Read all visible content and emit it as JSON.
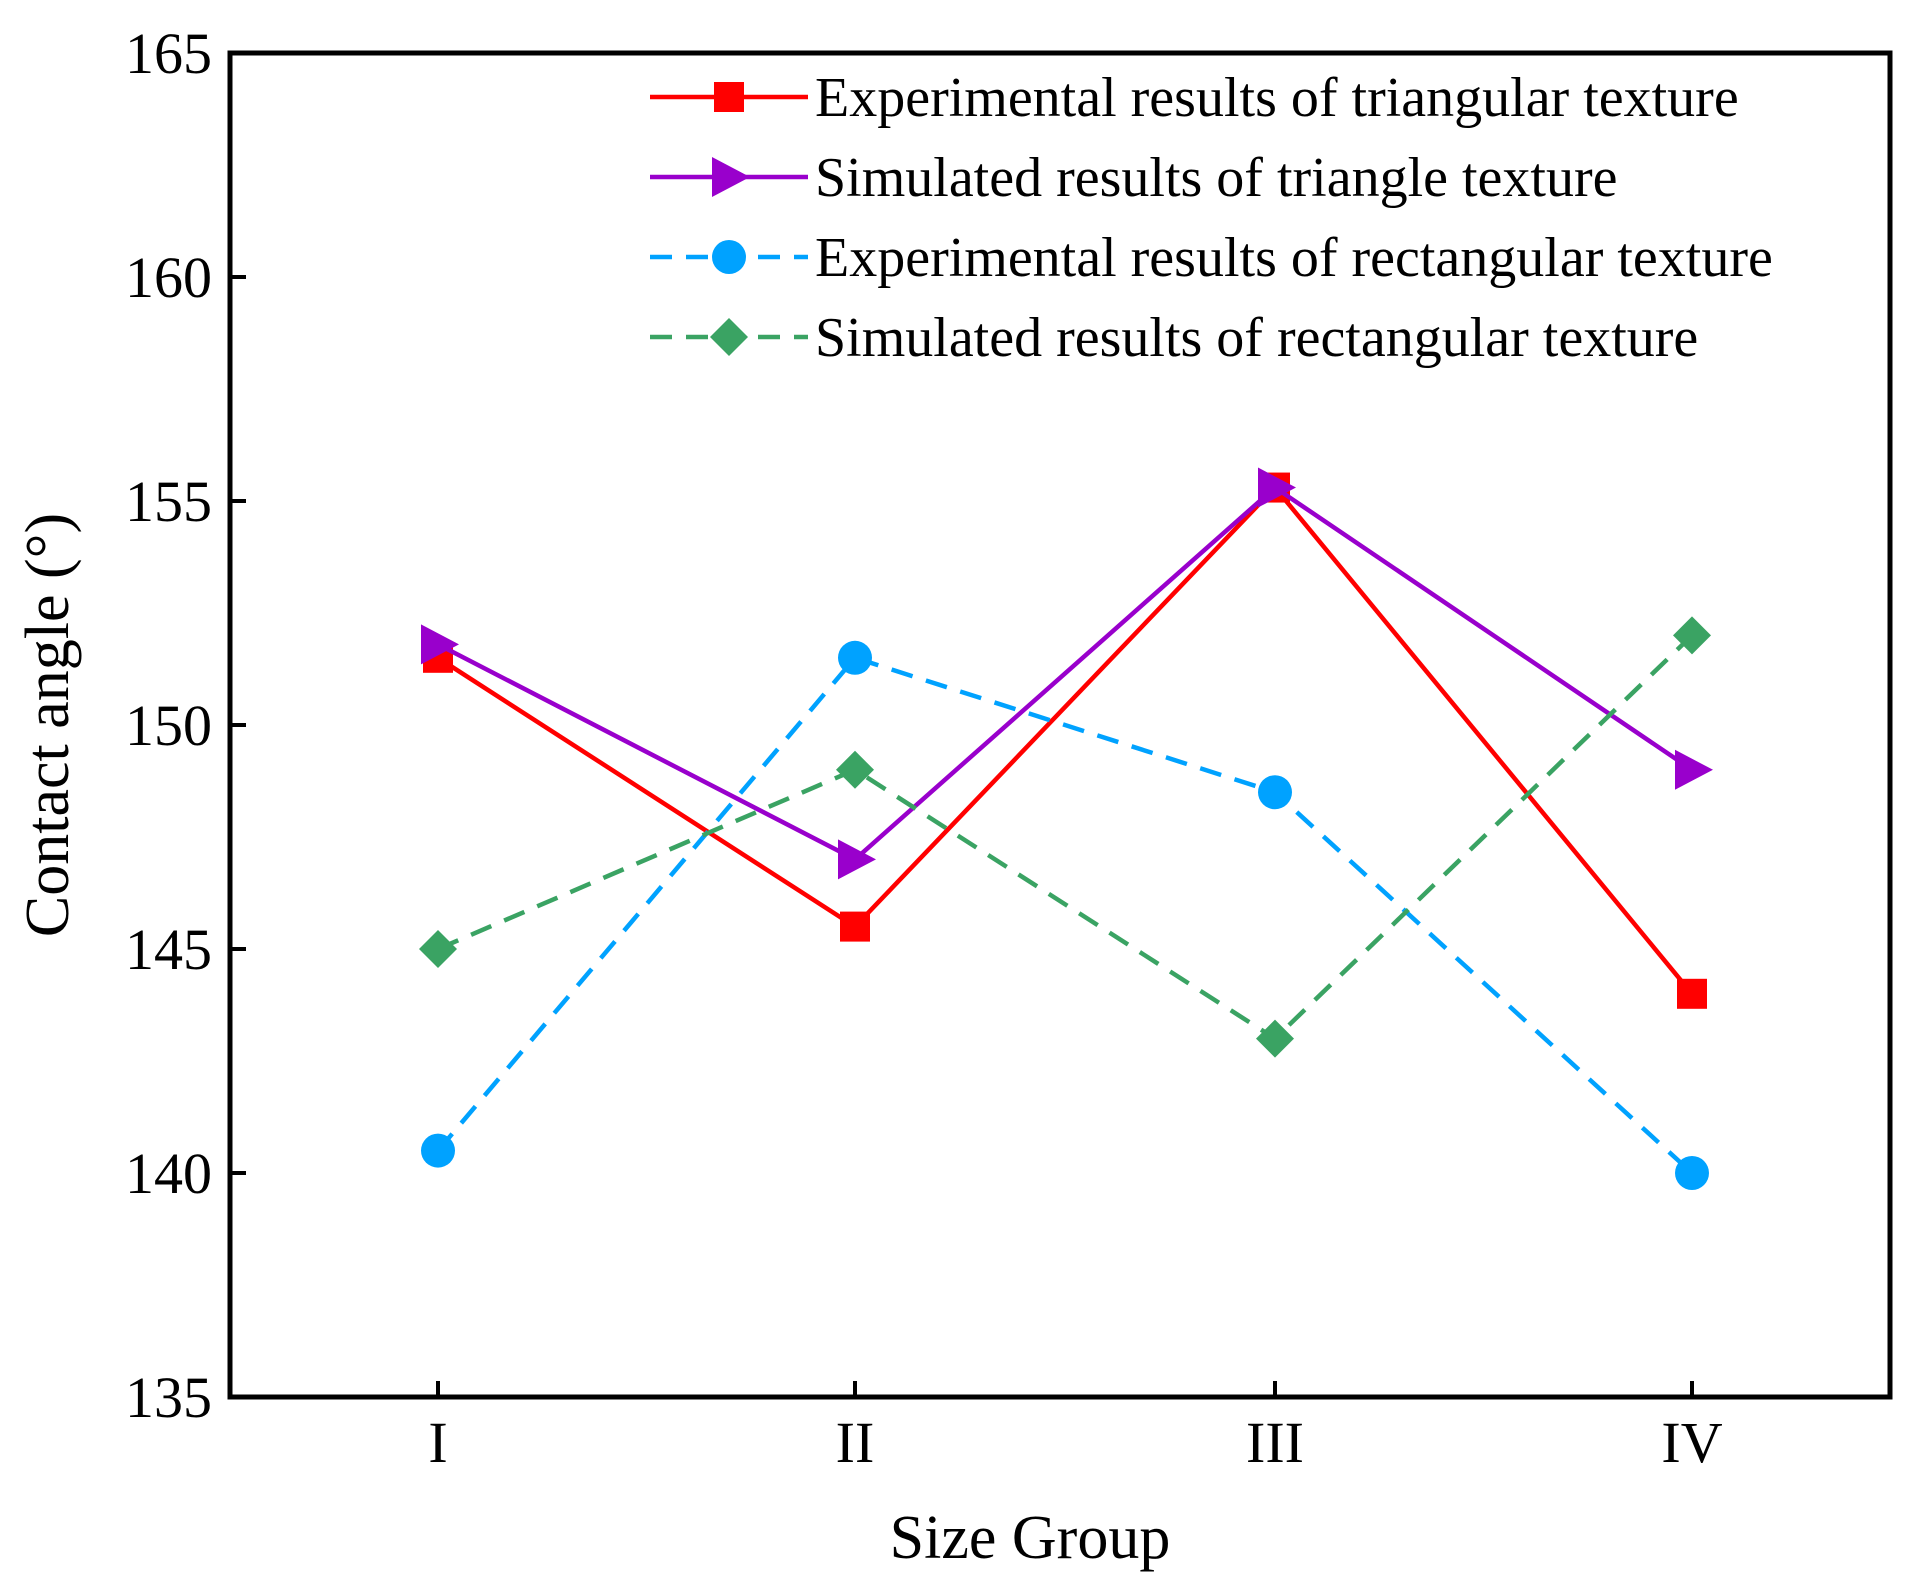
{
  "chart_data": {
    "type": "line",
    "title": "",
    "xlabel": "Size Group",
    "ylabel": "Contact angle (°)",
    "categories": [
      "I",
      "II",
      "III",
      "IV"
    ],
    "ylim": [
      135,
      165
    ],
    "yticks": [
      135,
      140,
      145,
      150,
      155,
      160,
      165
    ],
    "grid": false,
    "legend_position": "top-right",
    "series": [
      {
        "name": "Experimental results of triangular texture",
        "color": "#ff0000",
        "marker": "square",
        "linestyle": "solid",
        "values": [
          151.5,
          145.5,
          155.3,
          144.0
        ]
      },
      {
        "name": "Simulated results of triangle texture",
        "color": "#9900cc",
        "marker": "triangle-right",
        "linestyle": "solid",
        "values": [
          151.8,
          147.0,
          155.3,
          149.0
        ]
      },
      {
        "name": "Experimental results of rectangular texture",
        "color": "#00a2ff",
        "marker": "circle",
        "linestyle": "dashed",
        "values": [
          140.5,
          151.5,
          148.5,
          140.0
        ]
      },
      {
        "name": "Simulated results of rectangular texture",
        "color": "#3aa363",
        "marker": "diamond",
        "linestyle": "dashed",
        "values": [
          145.0,
          149.0,
          143.0,
          152.0
        ]
      }
    ]
  }
}
